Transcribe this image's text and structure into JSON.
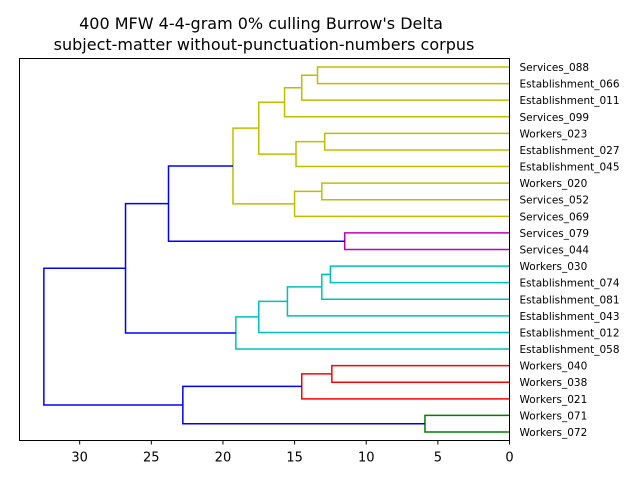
{
  "chart_data": {
    "type": "dendrogram",
    "title_lines": [
      "400 MFW 4-4-gram 0% culling Burrow's Delta",
      "subject-matter without-punctuation-numbers corpus"
    ],
    "orientation": "left",
    "xlim": [
      34.2,
      0
    ],
    "xticks": [
      30,
      25,
      20,
      15,
      10,
      5,
      0
    ],
    "leaves": [
      "Services_088",
      "Establishment_066",
      "Establishment_011",
      "Services_099",
      "Workers_023",
      "Establishment_027",
      "Establishment_045",
      "Workers_020",
      "Services_052",
      "Services_069",
      "Services_079",
      "Services_044",
      "Workers_030",
      "Establishment_074",
      "Establishment_081",
      "Establishment_043",
      "Establishment_012",
      "Establishment_058",
      "Workers_040",
      "Workers_038",
      "Workers_021",
      "Workers_071",
      "Workers_072"
    ],
    "colors": {
      "yellow": "#bfbf00",
      "magenta": "#bf00bf",
      "cyan": "#00bfbf",
      "red": "#ff0000",
      "green": "#008000",
      "blue": "#0000ff"
    },
    "merges": [
      {
        "id": "a",
        "left": 0,
        "right": 1,
        "height": 13.4,
        "color": "yellow"
      },
      {
        "id": "b",
        "left": "a",
        "right": 2,
        "height": 14.5,
        "color": "yellow"
      },
      {
        "id": "c",
        "left": "b",
        "right": 3,
        "height": 15.7,
        "color": "yellow"
      },
      {
        "id": "d",
        "left": 4,
        "right": 5,
        "height": 12.9,
        "color": "yellow"
      },
      {
        "id": "e",
        "left": "d",
        "right": 6,
        "height": 14.9,
        "color": "yellow"
      },
      {
        "id": "f",
        "left": "c",
        "right": "e",
        "height": 17.5,
        "color": "yellow"
      },
      {
        "id": "g",
        "left": 7,
        "right": 8,
        "height": 13.1,
        "color": "yellow"
      },
      {
        "id": "h",
        "left": "g",
        "right": 9,
        "height": 15.0,
        "color": "yellow"
      },
      {
        "id": "i",
        "left": "f",
        "right": "h",
        "height": 19.3,
        "color": "yellow"
      },
      {
        "id": "j",
        "left": 10,
        "right": 11,
        "height": 11.5,
        "color": "magenta"
      },
      {
        "id": "k",
        "left": "i",
        "right": "j",
        "height": 23.8,
        "color": "blue"
      },
      {
        "id": "l",
        "left": 12,
        "right": 13,
        "height": 12.5,
        "color": "cyan"
      },
      {
        "id": "m",
        "left": "l",
        "right": 14,
        "height": 13.1,
        "color": "cyan"
      },
      {
        "id": "n",
        "left": "m",
        "right": 15,
        "height": 15.5,
        "color": "cyan"
      },
      {
        "id": "o",
        "left": "n",
        "right": 16,
        "height": 17.5,
        "color": "cyan"
      },
      {
        "id": "p",
        "left": "o",
        "right": 17,
        "height": 19.1,
        "color": "cyan"
      },
      {
        "id": "q",
        "left": "k",
        "right": "p",
        "height": 26.8,
        "color": "blue"
      },
      {
        "id": "r",
        "left": 18,
        "right": 19,
        "height": 12.4,
        "color": "red"
      },
      {
        "id": "s",
        "left": "r",
        "right": 20,
        "height": 14.5,
        "color": "red"
      },
      {
        "id": "t",
        "left": 21,
        "right": 22,
        "height": 5.9,
        "color": "green"
      },
      {
        "id": "u",
        "left": "s",
        "right": "t",
        "height": 22.8,
        "color": "blue"
      },
      {
        "id": "v",
        "left": "q",
        "right": "u",
        "height": 32.5,
        "color": "blue"
      }
    ]
  }
}
